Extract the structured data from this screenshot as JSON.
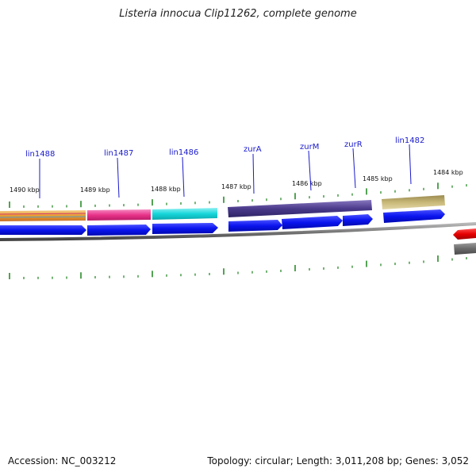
{
  "title": "Listeria innocua Clip11262, complete genome",
  "footer": {
    "accession": "Accession: NC_003212",
    "summary": "Topology: circular; Length: 3,011,208 bp; Genes: 3,052"
  },
  "colors": {
    "tick": "#2a8a2a",
    "label": "#1a1acc",
    "cds_forward": "#0a14ee",
    "cds_reverse": "#e60000",
    "backbone": "#7a7a7a",
    "kbp_text": "#111111"
  },
  "kbp_labels": [
    "1490 kbp",
    "1489 kbp",
    "1488 kbp",
    "1487 kbp",
    "1486 kbp",
    "1485 kbp",
    "1484 kbp"
  ],
  "gene_labels": [
    "lin1488",
    "lin1487",
    "lin1486",
    "zurA",
    "zurM",
    "zurR",
    "lin1482"
  ],
  "feature_colors": [
    "#e8a840",
    "#e8338a",
    "#16d6da",
    "#4a3a8a",
    "#c8b878",
    "#707070"
  ]
}
